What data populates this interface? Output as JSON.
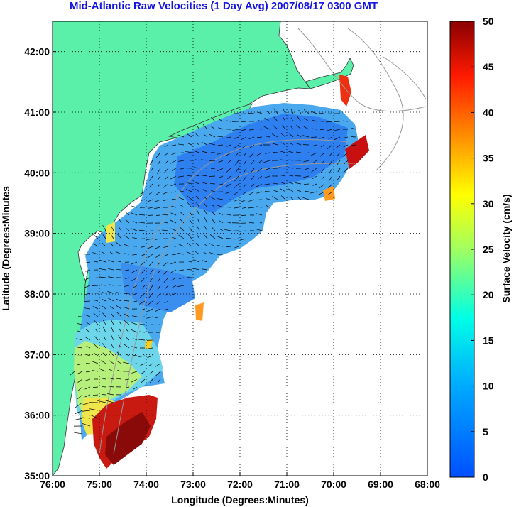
{
  "title": "Mid-Atlantic Raw Velocities (1 Day Avg) 2007/08/17 0300 GMT",
  "map": {
    "xlabel": "Longitude (Degrees:Minutes)",
    "ylabel": "Latitude (Degrees:Minutes",
    "lon_range": [
      -76,
      -68
    ],
    "lat_range": [
      35,
      42.5
    ],
    "x_ticks": [
      {
        "value": -76,
        "label": "76:00"
      },
      {
        "value": -75,
        "label": "75:00"
      },
      {
        "value": -74,
        "label": "74:00"
      },
      {
        "value": -73,
        "label": "73:00"
      },
      {
        "value": -72,
        "label": "72:00"
      },
      {
        "value": -71,
        "label": "71:00"
      },
      {
        "value": -70,
        "label": "70:00"
      },
      {
        "value": -69,
        "label": "69:00"
      },
      {
        "value": -68,
        "label": "68:00"
      }
    ],
    "y_ticks": [
      {
        "value": 35,
        "label": "35:00"
      },
      {
        "value": 36,
        "label": "36:00"
      },
      {
        "value": 37,
        "label": "37:00"
      },
      {
        "value": 38,
        "label": "38:00"
      },
      {
        "value": 39,
        "label": "39:00"
      },
      {
        "value": 40,
        "label": "40:00"
      },
      {
        "value": 41,
        "label": "41:00"
      },
      {
        "value": 42,
        "label": "42:00"
      }
    ],
    "grid": "dotted",
    "land_color": "#5af0aa"
  },
  "colorbar": {
    "label": "Surface Velocity (cm/s)",
    "range": [
      0,
      50
    ],
    "ticks": [
      {
        "value": 0,
        "label": "0"
      },
      {
        "value": 5,
        "label": "5"
      },
      {
        "value": 10,
        "label": "10"
      },
      {
        "value": 15,
        "label": "15"
      },
      {
        "value": 20,
        "label": "20"
      },
      {
        "value": 25,
        "label": "25"
      },
      {
        "value": 30,
        "label": "30"
      },
      {
        "value": 35,
        "label": "35"
      },
      {
        "value": 40,
        "label": "40"
      },
      {
        "value": 45,
        "label": "45"
      },
      {
        "value": 50,
        "label": "50"
      }
    ],
    "colormap": "jet"
  }
}
